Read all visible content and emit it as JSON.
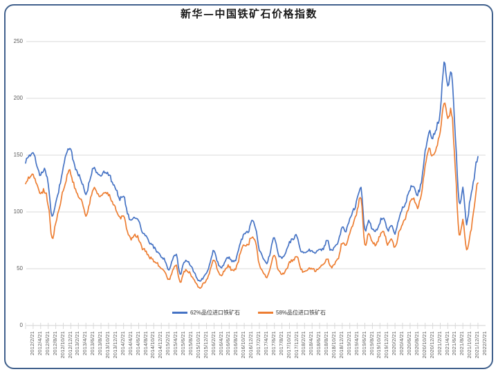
{
  "title": "新华—中国铁矿石价格指数",
  "colors": {
    "series_62": "#4472C4",
    "series_58": "#ED7D31",
    "gridline": "#D9D9D9",
    "axis_label": "#595959",
    "frame_border": "#40608C"
  },
  "chart_data": {
    "type": "line",
    "title": "新华—中国铁矿石价格指数",
    "xlabel": "",
    "ylabel": "",
    "ylim": [
      0,
      250
    ],
    "y_ticks": [
      0,
      50,
      100,
      150,
      200,
      250
    ],
    "grid": true,
    "legend_position": "bottom",
    "x_tick_labels": [
      "2012/2/21",
      "2012/4/21",
      "2012/6/21",
      "2012/8/21",
      "2012/10/21",
      "2012/12/21",
      "2013/2/21",
      "2013/4/21",
      "2013/6/21",
      "2013/8/21",
      "2013/10/21",
      "2013/12/21",
      "2014/2/21",
      "2014/4/21",
      "2014/6/21",
      "2014/8/21",
      "2014/10/21",
      "2014/12/21",
      "2015/2/21",
      "2015/4/21",
      "2015/6/21",
      "2015/8/21",
      "2015/10/21",
      "2015/12/21",
      "2016/2/21",
      "2016/4/21",
      "2016/6/21",
      "2016/8/21",
      "2016/10/21",
      "2016/12/21",
      "2017/2/21",
      "2017/4/21",
      "2017/6/21",
      "2017/8/21",
      "2017/10/21",
      "2017/12/21",
      "2018/2/21",
      "2018/4/21",
      "2018/6/21",
      "2018/8/21",
      "2018/10/21",
      "2018/12/21",
      "2019/2/21",
      "2019/4/21",
      "2019/6/21",
      "2019/8/21",
      "2019/10/21",
      "2019/12/21",
      "2020/2/21",
      "2020/4/21",
      "2020/6/21",
      "2020/8/21",
      "2020/10/21",
      "2020/12/21",
      "2021/2/21",
      "2021/4/21",
      "2021/6/21",
      "2021/8/21",
      "2021/10/21",
      "2021/12/21",
      "2022/2/21"
    ],
    "values_start": "2012/2",
    "values_interval": "monthly",
    "series": [
      {
        "name": "62%品位进口铁矿石",
        "color": "#4472C4",
        "values": [
          146,
          149,
          151,
          141,
          133,
          137,
          124,
          96,
          108,
          122,
          138,
          153,
          155,
          140,
          133,
          126,
          115,
          127,
          139,
          134,
          133,
          136,
          134,
          127,
          120,
          111,
          114,
          99,
          92,
          95,
          92,
          82,
          79,
          73,
          69,
          65,
          61,
          57,
          49,
          58,
          62,
          45,
          55,
          56,
          52,
          45,
          39,
          42,
          46,
          56,
          66,
          55,
          51,
          57,
          60,
          56,
          60,
          73,
          81,
          82,
          92,
          86,
          67,
          60,
          55,
          66,
          77,
          63,
          59,
          64,
          73,
          76,
          78,
          66,
          64,
          66,
          65,
          64,
          67,
          68,
          75,
          66,
          70,
          74,
          86,
          83,
          94,
          101,
          111,
          121,
          84,
          93,
          85,
          83,
          91,
          95,
          84,
          88,
          81,
          93,
          102,
          109,
          121,
          123,
          116,
          127,
          152,
          171,
          165,
          173,
          188,
          231,
          211,
          222,
          168,
          107,
          121,
          90,
          113,
          131,
          150
        ]
      },
      {
        "name": "58%品位进口铁矿石",
        "color": "#ED7D31",
        "values": [
          127,
          130,
          133,
          124,
          116,
          119,
          106,
          78,
          90,
          104,
          119,
          132,
          135,
          121,
          114,
          108,
          97,
          108,
          120,
          115,
          114,
          117,
          115,
          109,
          102,
          94,
          97,
          83,
          77,
          80,
          77,
          68,
          65,
          60,
          57,
          54,
          50,
          47,
          40,
          49,
          53,
          37,
          47,
          48,
          44,
          38,
          33,
          36,
          40,
          49,
          58,
          48,
          44,
          50,
          52,
          48,
          52,
          64,
          71,
          71,
          79,
          73,
          54,
          47,
          42,
          52,
          62,
          49,
          45,
          48,
          55,
          58,
          60,
          50,
          47,
          50,
          50,
          48,
          51,
          53,
          59,
          51,
          55,
          60,
          73,
          71,
          82,
          90,
          101,
          112,
          71,
          81,
          73,
          71,
          79,
          83,
          72,
          76,
          69,
          81,
          90,
          97,
          109,
          111,
          104,
          115,
          139,
          156,
          149,
          157,
          170,
          197,
          181,
          189,
          138,
          80,
          92,
          67,
          81,
          104,
          127
        ]
      }
    ]
  }
}
